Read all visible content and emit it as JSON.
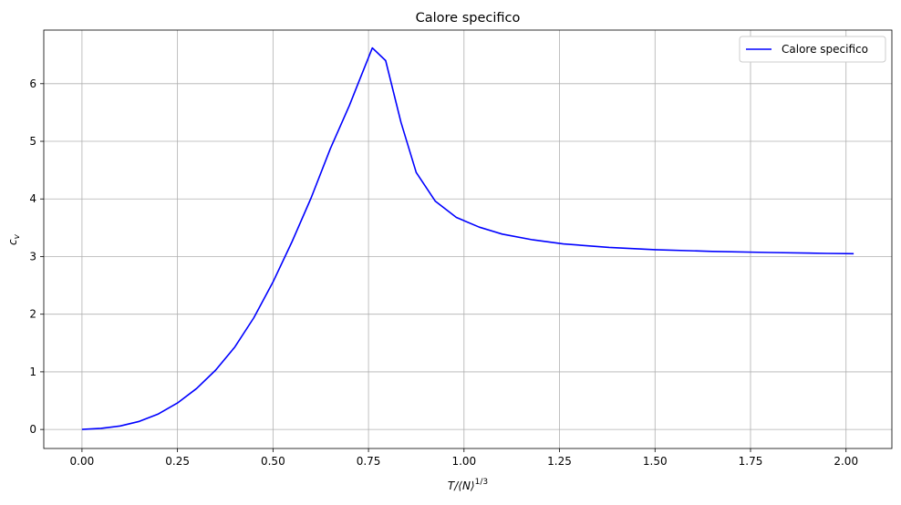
{
  "chart_data": {
    "type": "line",
    "title": "Calore specifico",
    "xlabel": {
      "base": "T/⟨N⟩",
      "sup": "1/3"
    },
    "ylabel": {
      "base": "c",
      "sub": "v"
    },
    "xlim": [
      -0.1,
      2.12
    ],
    "ylim": [
      -0.33,
      6.93
    ],
    "grid": true,
    "legend_position": "top-right",
    "x_ticks": [
      {
        "value": 0.0,
        "label": "0.00"
      },
      {
        "value": 0.25,
        "label": "0.25"
      },
      {
        "value": 0.5,
        "label": "0.50"
      },
      {
        "value": 0.75,
        "label": "0.75"
      },
      {
        "value": 1.0,
        "label": "1.00"
      },
      {
        "value": 1.25,
        "label": "1.25"
      },
      {
        "value": 1.5,
        "label": "1.50"
      },
      {
        "value": 1.75,
        "label": "1.75"
      },
      {
        "value": 2.0,
        "label": "2.00"
      }
    ],
    "y_ticks": [
      {
        "value": 0,
        "label": "0"
      },
      {
        "value": 1,
        "label": "1"
      },
      {
        "value": 2,
        "label": "2"
      },
      {
        "value": 3,
        "label": "3"
      },
      {
        "value": 4,
        "label": "4"
      },
      {
        "value": 5,
        "label": "5"
      },
      {
        "value": 6,
        "label": "6"
      }
    ],
    "series": [
      {
        "name": "Calore specifico",
        "color": "#0000ff",
        "x": [
          0.0,
          0.05,
          0.1,
          0.15,
          0.2,
          0.25,
          0.3,
          0.35,
          0.4,
          0.45,
          0.5,
          0.55,
          0.6,
          0.65,
          0.7,
          0.725,
          0.76,
          0.795,
          0.835,
          0.875,
          0.925,
          0.98,
          1.04,
          1.1,
          1.18,
          1.26,
          1.38,
          1.5,
          1.65,
          1.8,
          1.95,
          2.02
        ],
        "y": [
          0.0,
          0.02,
          0.06,
          0.14,
          0.27,
          0.46,
          0.71,
          1.03,
          1.43,
          1.94,
          2.56,
          3.26,
          4.02,
          4.87,
          5.62,
          6.04,
          6.62,
          6.4,
          5.33,
          4.46,
          3.96,
          3.68,
          3.51,
          3.39,
          3.29,
          3.22,
          3.16,
          3.12,
          3.09,
          3.07,
          3.055,
          3.05
        ]
      }
    ]
  }
}
